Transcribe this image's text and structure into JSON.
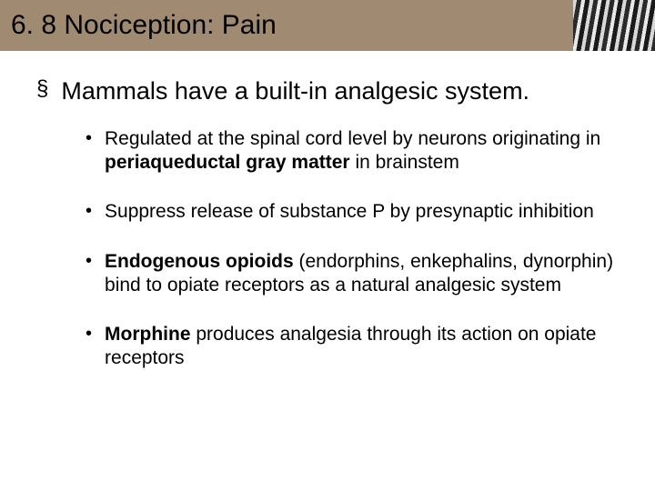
{
  "header": {
    "title": "6. 8 Nociception: Pain",
    "bg_color": "#a18a72",
    "title_color": "#000000",
    "title_fontsize": 30
  },
  "main": {
    "bullet_marker": "§",
    "text": "Mammals have a built-in analgesic system.",
    "fontsize": 27
  },
  "subs": [
    {
      "marker": "•",
      "parts": [
        {
          "text": "Regulated at the spinal cord level by neurons originating in ",
          "bold": false
        },
        {
          "text": "periaqueductal gray matter",
          "bold": true
        },
        {
          "text": " in brainstem",
          "bold": false
        }
      ]
    },
    {
      "marker": "•",
      "parts": [
        {
          "text": "Suppress release of substance P by presynaptic inhibition",
          "bold": false
        }
      ]
    },
    {
      "marker": "•",
      "parts": [
        {
          "text": "Endogenous opioids",
          "bold": true
        },
        {
          "text": " (endorphins, enkephalins, dynorphin) bind to opiate receptors as a natural analgesic system",
          "bold": false
        }
      ]
    },
    {
      "marker": "•",
      "parts": [
        {
          "text": "Morphine",
          "bold": true
        },
        {
          "text": " produces analgesia through its action on opiate receptors",
          "bold": false
        }
      ]
    }
  ],
  "styles": {
    "body_bg": "#ffffff",
    "sub_fontsize": 21,
    "sub_lineheight": 1.25
  }
}
